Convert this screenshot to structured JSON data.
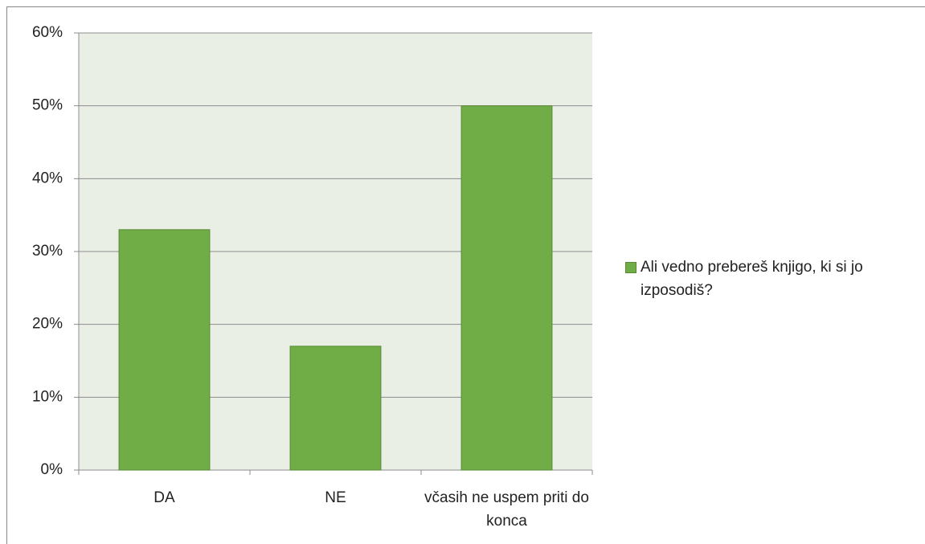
{
  "chart_data": {
    "type": "bar",
    "categories": [
      "DA",
      "NE",
      "včasih ne uspem priti do konca"
    ],
    "series": [
      {
        "name": "Ali vedno prebereš knjigo, ki si jo izposodiš?",
        "color": "#70ad47",
        "values": [
          33,
          17,
          50
        ]
      }
    ],
    "ylim": [
      0,
      60
    ],
    "yticks": [
      {
        "value": 0,
        "label": "0%"
      },
      {
        "value": 10,
        "label": "10%"
      },
      {
        "value": 20,
        "label": "20%"
      },
      {
        "value": 30,
        "label": "30%"
      },
      {
        "value": 40,
        "label": "40%"
      },
      {
        "value": 50,
        "label": "50%"
      },
      {
        "value": 60,
        "label": "60%"
      }
    ],
    "grid": true,
    "legend": "right"
  }
}
